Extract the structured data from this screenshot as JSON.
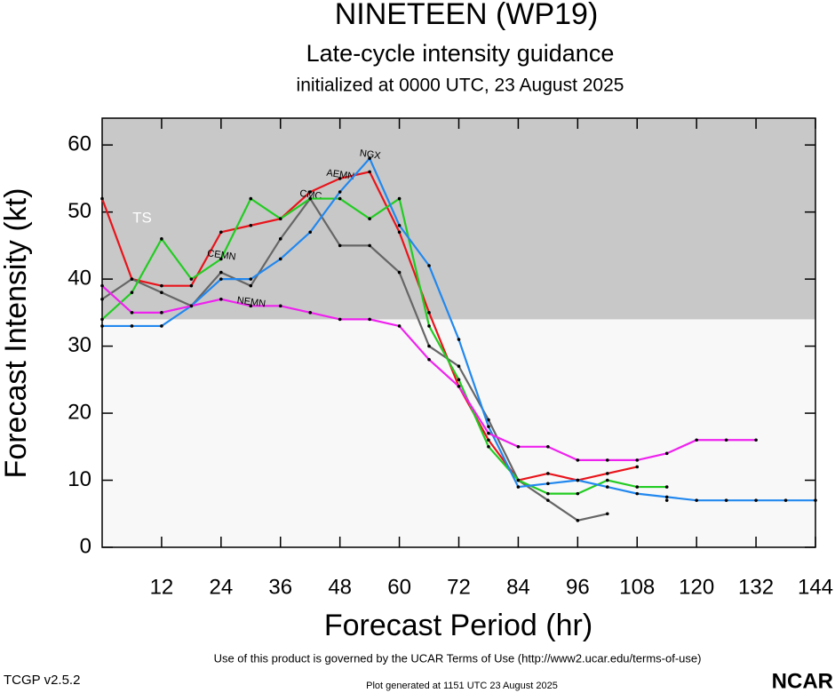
{
  "chart_data": {
    "type": "line",
    "title": "NINETEEN (WP19)",
    "subtitle": "Late-cycle intensity guidance",
    "subtitle2": "initialized at 0000 UTC, 23 August 2025",
    "x_label": "Forecast Period (hr)",
    "y_label": "Forecast Intensity (kt)",
    "shade": {
      "label": "TS",
      "from": 34
    },
    "x": [
      0,
      6,
      12,
      18,
      24,
      30,
      36,
      42,
      48,
      54,
      60,
      66,
      72,
      78,
      84,
      90,
      96,
      102,
      108,
      114,
      120,
      126,
      132,
      138,
      144
    ],
    "xlim": [
      0,
      144
    ],
    "xticks": [
      12,
      24,
      36,
      48,
      60,
      72,
      84,
      96,
      108,
      120,
      132,
      144
    ],
    "ylim": [
      0,
      64
    ],
    "yticks": [
      0,
      10,
      20,
      30,
      40,
      50,
      60
    ],
    "series": [
      {
        "name": "AEMN",
        "color": "#e8141b",
        "values": [
          52,
          40,
          39,
          39,
          47,
          48,
          49,
          53,
          55,
          56,
          47,
          35,
          24,
          16,
          10,
          11,
          10,
          11,
          12,
          null,
          null,
          null,
          null,
          null,
          null
        ]
      },
      {
        "name": "CMC",
        "color": "#666666",
        "values": [
          37,
          40,
          38,
          36,
          41,
          39,
          46,
          52,
          45,
          45,
          41,
          30,
          27,
          19,
          10,
          7,
          4,
          5,
          null,
          7,
          null,
          null,
          null,
          null,
          null
        ]
      },
      {
        "name": "CEMN",
        "color": "#22cc22",
        "values": [
          34,
          38,
          46,
          40,
          43,
          52,
          49,
          52,
          52,
          49,
          52,
          33,
          25,
          15,
          10,
          8,
          8,
          10,
          9,
          9,
          null,
          null,
          null,
          null,
          null
        ]
      },
      {
        "name": "NGX",
        "color": "#2288ee",
        "values": [
          33,
          33,
          33,
          36,
          40,
          40,
          43,
          47,
          53,
          58,
          48,
          42,
          31,
          18,
          9,
          9.5,
          10,
          9,
          8,
          7.5,
          7,
          7,
          7,
          7,
          7
        ]
      },
      {
        "name": "NEMN",
        "color": "#ee22ee",
        "values": [
          39,
          35,
          35,
          36,
          37,
          36,
          36,
          35,
          34,
          34,
          33,
          28,
          24,
          17,
          15,
          15,
          13,
          13,
          13,
          14,
          16,
          16,
          16,
          null,
          null
        ]
      }
    ]
  },
  "footer": {
    "terms": "Use of this product is governed by the UCAR Terms of Use (http://www2.ucar.edu/terms-of-use)",
    "version": "TCGP v2.5.2",
    "generated": "Plot generated at 1151 UTC   23 August 2025",
    "logo": "NCAR"
  }
}
